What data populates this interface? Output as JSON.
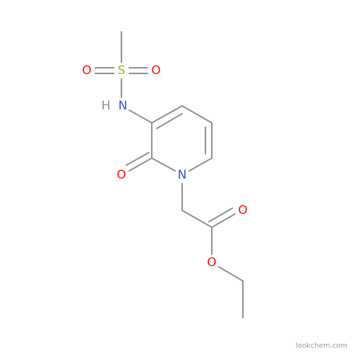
{
  "atoms": [
    {
      "label": "S"
    },
    {
      "label": "O"
    },
    {
      "label": "O"
    },
    {
      "label": "N"
    },
    {
      "label": "H"
    },
    {
      "label": "O"
    },
    {
      "label": "N"
    },
    {
      "label": "O"
    },
    {
      "label": "O"
    }
  ],
  "watermark": "lookchem.com"
}
